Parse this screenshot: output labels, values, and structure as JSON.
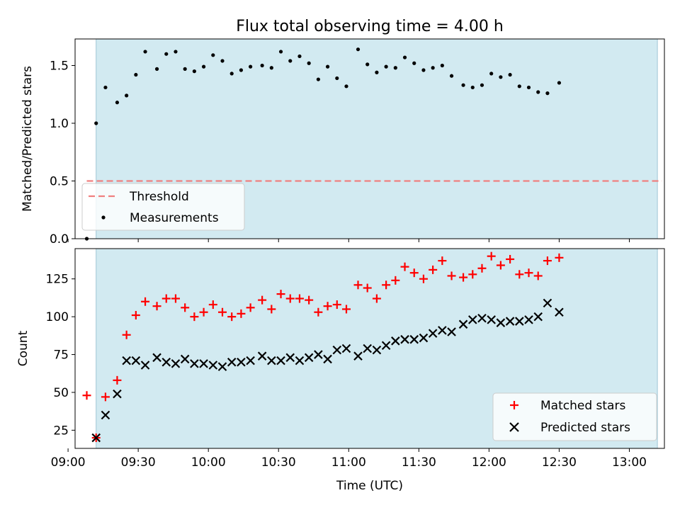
{
  "chart_data": [
    {
      "type": "scatter",
      "title": "Flux total observing time = 4.00 h",
      "xlabel": "",
      "ylabel": "Matched/Predicted stars",
      "xlim": [
        "09:03",
        "13:15"
      ],
      "ylim": [
        0,
        1.73
      ],
      "yticks": [
        "0.0",
        "0.5",
        "1.0",
        "1.5"
      ],
      "shaded_span": [
        "09:12",
        "13:12"
      ],
      "threshold": {
        "name": "Threshold",
        "value": 0.5,
        "x_range": [
          "09:08",
          "13:14"
        ],
        "color": "#f08080"
      },
      "legend": {
        "location": "lower-left",
        "entries": [
          "Threshold",
          "Measurements"
        ]
      },
      "series": [
        {
          "name": "Measurements",
          "color": "#000000",
          "points": [
            [
              "09:08",
              0.0
            ],
            [
              "09:12",
              1.0
            ],
            [
              "09:16",
              1.31
            ],
            [
              "09:21",
              1.18
            ],
            [
              "09:25",
              1.24
            ],
            [
              "09:29",
              1.42
            ],
            [
              "09:33",
              1.62
            ],
            [
              "09:38",
              1.47
            ],
            [
              "09:42",
              1.6
            ],
            [
              "09:46",
              1.62
            ],
            [
              "09:50",
              1.47
            ],
            [
              "09:54",
              1.45
            ],
            [
              "09:58",
              1.49
            ],
            [
              "10:02",
              1.59
            ],
            [
              "10:06",
              1.54
            ],
            [
              "10:10",
              1.43
            ],
            [
              "10:14",
              1.46
            ],
            [
              "10:18",
              1.49
            ],
            [
              "10:23",
              1.5
            ],
            [
              "10:27",
              1.48
            ],
            [
              "10:31",
              1.62
            ],
            [
              "10:35",
              1.54
            ],
            [
              "10:39",
              1.58
            ],
            [
              "10:43",
              1.52
            ],
            [
              "10:47",
              1.38
            ],
            [
              "10:51",
              1.49
            ],
            [
              "10:55",
              1.39
            ],
            [
              "10:59",
              1.32
            ],
            [
              "11:04",
              1.64
            ],
            [
              "11:08",
              1.51
            ],
            [
              "11:12",
              1.44
            ],
            [
              "11:16",
              1.49
            ],
            [
              "11:20",
              1.48
            ],
            [
              "11:24",
              1.57
            ],
            [
              "11:28",
              1.52
            ],
            [
              "11:32",
              1.46
            ],
            [
              "11:36",
              1.48
            ],
            [
              "11:40",
              1.5
            ],
            [
              "11:44",
              1.41
            ],
            [
              "11:49",
              1.33
            ],
            [
              "11:53",
              1.31
            ],
            [
              "11:57",
              1.33
            ],
            [
              "12:01",
              1.43
            ],
            [
              "12:05",
              1.4
            ],
            [
              "12:09",
              1.42
            ],
            [
              "12:13",
              1.32
            ],
            [
              "12:17",
              1.31
            ],
            [
              "12:21",
              1.27
            ],
            [
              "12:25",
              1.26
            ],
            [
              "12:30",
              1.35
            ]
          ]
        }
      ]
    },
    {
      "type": "scatter",
      "title": "",
      "xlabel": "Time (UTC)",
      "ylabel": "Count",
      "xlim": [
        "09:03",
        "13:15"
      ],
      "ylim": [
        13,
        145
      ],
      "yticks": [
        "25",
        "50",
        "75",
        "100",
        "125"
      ],
      "xticks": [
        "09:00",
        "09:30",
        "10:00",
        "10:30",
        "11:00",
        "11:30",
        "12:00",
        "12:30",
        "13:00"
      ],
      "shaded_span": [
        "09:12",
        "13:12"
      ],
      "legend": {
        "location": "lower-right",
        "entries": [
          "Matched stars",
          "Predicted stars"
        ]
      },
      "series": [
        {
          "name": "Matched stars",
          "marker": "+",
          "color": "#ff0000",
          "x": [
            "09:08",
            "09:12",
            "09:16",
            "09:21",
            "09:25",
            "09:29",
            "09:33",
            "09:38",
            "09:42",
            "09:46",
            "09:50",
            "09:54",
            "09:58",
            "10:02",
            "10:06",
            "10:10",
            "10:14",
            "10:18",
            "10:23",
            "10:27",
            "10:31",
            "10:35",
            "10:39",
            "10:43",
            "10:47",
            "10:51",
            "10:55",
            "10:59",
            "11:04",
            "11:08",
            "11:12",
            "11:16",
            "11:20",
            "11:24",
            "11:28",
            "11:32",
            "11:36",
            "11:40",
            "11:44",
            "11:49",
            "11:53",
            "11:57",
            "12:01",
            "12:05",
            "12:09",
            "12:13",
            "12:17",
            "12:21",
            "12:25",
            "12:30"
          ],
          "values": [
            48,
            20,
            47,
            58,
            88,
            101,
            110,
            107,
            112,
            112,
            106,
            100,
            103,
            108,
            103,
            100,
            102,
            106,
            111,
            105,
            115,
            112,
            112,
            111,
            103,
            107,
            108,
            105,
            121,
            119,
            112,
            121,
            124,
            133,
            129,
            125,
            131,
            137,
            127,
            126,
            128,
            132,
            140,
            134,
            138,
            128,
            129,
            127,
            137,
            139
          ]
        },
        {
          "name": "Predicted stars",
          "marker": "x",
          "color": "#000000",
          "x": [
            "09:12",
            "09:16",
            "09:21",
            "09:25",
            "09:29",
            "09:33",
            "09:38",
            "09:42",
            "09:46",
            "09:50",
            "09:54",
            "09:58",
            "10:02",
            "10:06",
            "10:10",
            "10:14",
            "10:18",
            "10:23",
            "10:27",
            "10:31",
            "10:35",
            "10:39",
            "10:43",
            "10:47",
            "10:51",
            "10:55",
            "10:59",
            "11:04",
            "11:08",
            "11:12",
            "11:16",
            "11:20",
            "11:24",
            "11:28",
            "11:32",
            "11:36",
            "11:40",
            "11:44",
            "11:49",
            "11:53",
            "11:57",
            "12:01",
            "12:05",
            "12:09",
            "12:13",
            "12:17",
            "12:21",
            "12:25",
            "12:30"
          ],
          "values": [
            20,
            35,
            49,
            71,
            71,
            68,
            73,
            70,
            69,
            72,
            69,
            69,
            68,
            67,
            70,
            70,
            71,
            74,
            71,
            71,
            73,
            71,
            73,
            75,
            72,
            78,
            79,
            74,
            79,
            78,
            81,
            84,
            85,
            85,
            86,
            89,
            91,
            90,
            95,
            98,
            99,
            98,
            96,
            97,
            97,
            98,
            100,
            109,
            103
          ]
        }
      ]
    }
  ]
}
